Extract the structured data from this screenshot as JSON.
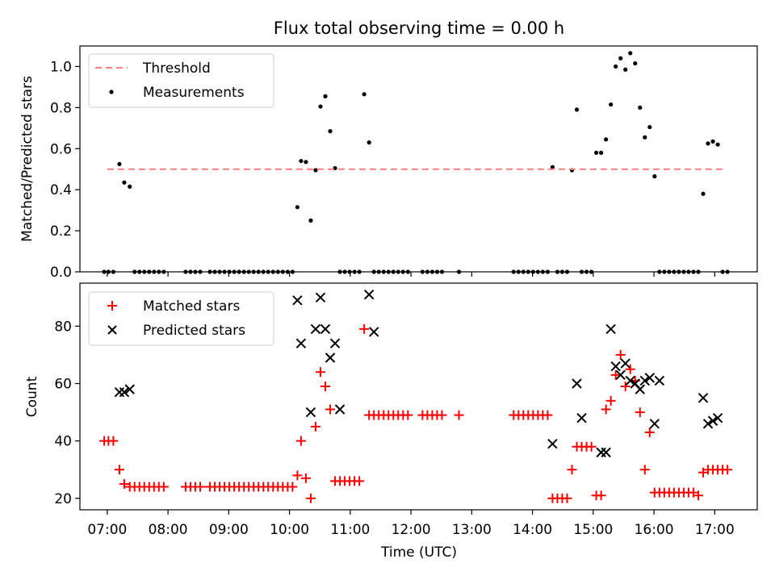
{
  "title": "Flux total observing time = 0.00 h",
  "colors": {
    "threshold": "#ff7f7f",
    "measurements": "#000000",
    "matched": "#ff0000",
    "predicted": "#000000"
  },
  "chart_data": [
    {
      "type": "scatter",
      "ylabel": "Matched/Predicted stars",
      "ylim": [
        0,
        1.1
      ],
      "yticks": [
        0.0,
        0.2,
        0.4,
        0.6,
        0.8,
        1.0
      ],
      "ytick_labels": [
        "0.0",
        "0.2",
        "0.4",
        "0.6",
        "0.8",
        "1.0"
      ],
      "xlim": [
        6.55,
        17.7
      ],
      "legend": {
        "position": "top-left",
        "entries": [
          "Threshold",
          "Measurements"
        ]
      },
      "threshold": {
        "name": "Threshold",
        "y": 0.5,
        "x": [
          7.0,
          17.15
        ],
        "style": "dashed"
      },
      "series": [
        {
          "name": "Measurements",
          "x": [
            6.95,
            7.02,
            7.1,
            7.2,
            7.28,
            7.37,
            7.45,
            7.53,
            7.61,
            7.69,
            7.77,
            7.85,
            7.93,
            8.29,
            8.37,
            8.45,
            8.53,
            8.69,
            8.77,
            8.85,
            8.93,
            9.01,
            9.09,
            9.17,
            9.25,
            9.33,
            9.41,
            9.49,
            9.57,
            9.65,
            9.73,
            9.81,
            9.89,
            9.97,
            10.05,
            10.13,
            10.19,
            10.27,
            10.35,
            10.43,
            10.51,
            10.59,
            10.67,
            10.75,
            10.83,
            10.91,
            10.99,
            11.07,
            11.15,
            11.23,
            11.31,
            11.39,
            11.47,
            11.55,
            11.63,
            11.71,
            11.79,
            11.87,
            11.95,
            12.19,
            12.27,
            12.35,
            12.43,
            12.51,
            12.79,
            13.69,
            13.77,
            13.85,
            13.93,
            14.01,
            14.09,
            14.17,
            14.25,
            14.33,
            14.41,
            14.49,
            14.57,
            14.65,
            14.73,
            14.81,
            14.89,
            14.97,
            15.05,
            15.13,
            15.21,
            15.29,
            15.37,
            15.45,
            15.53,
            15.61,
            15.69,
            15.77,
            15.85,
            15.93,
            16.01,
            16.09,
            16.17,
            16.25,
            16.33,
            16.41,
            16.49,
            16.57,
            16.65,
            16.73,
            16.81,
            16.89,
            16.97,
            17.05,
            17.13,
            17.21
          ],
          "y": [
            0,
            0,
            0,
            0.525,
            0.435,
            0.415,
            0,
            0,
            0,
            0,
            0,
            0,
            0,
            0,
            0,
            0,
            0,
            0,
            0,
            0,
            0,
            0,
            0,
            0,
            0,
            0,
            0,
            0,
            0,
            0,
            0,
            0,
            0,
            0,
            0,
            0.315,
            0.54,
            0.535,
            0.25,
            0.495,
            0.805,
            0.855,
            0.685,
            0.505,
            0,
            0,
            0,
            0,
            0,
            0.865,
            0.63,
            0,
            0,
            0,
            0,
            0,
            0,
            0,
            0,
            0,
            0,
            0,
            0,
            0,
            0,
            0,
            0,
            0,
            0,
            0,
            0,
            0,
            0,
            0.51,
            0,
            0,
            0,
            0.495,
            0.79,
            0,
            0,
            0,
            0.58,
            0.58,
            0.645,
            0.815,
            1.0,
            1.04,
            0.985,
            1.065,
            1.015,
            0.8,
            0.655,
            0.705,
            0.465,
            0,
            0,
            0,
            0,
            0,
            0,
            0,
            0,
            0,
            0.38,
            0.625,
            0.635,
            0.62,
            0,
            0
          ]
        }
      ]
    },
    {
      "type": "scatter",
      "xlabel": "Time (UTC)",
      "ylabel": "Count",
      "ylim": [
        16,
        95
      ],
      "yticks": [
        20,
        40,
        60,
        80
      ],
      "ytick_labels": [
        "20",
        "40",
        "60",
        "80"
      ],
      "xlim": [
        6.55,
        17.7
      ],
      "xticks": [
        7,
        8,
        9,
        10,
        11,
        12,
        13,
        14,
        15,
        16,
        17
      ],
      "xtick_labels": [
        "07:00",
        "08:00",
        "09:00",
        "10:00",
        "11:00",
        "12:00",
        "13:00",
        "14:00",
        "15:00",
        "16:00",
        "17:00"
      ],
      "legend": {
        "position": "top-left",
        "entries": [
          "Matched stars",
          "Predicted stars"
        ]
      },
      "series": [
        {
          "name": "Matched stars",
          "marker": "plus",
          "x": [
            6.95,
            7.02,
            7.1,
            7.2,
            7.28,
            7.37,
            7.45,
            7.53,
            7.61,
            7.69,
            7.77,
            7.85,
            7.93,
            8.29,
            8.37,
            8.45,
            8.53,
            8.69,
            8.77,
            8.85,
            8.93,
            9.01,
            9.09,
            9.17,
            9.25,
            9.33,
            9.41,
            9.49,
            9.57,
            9.65,
            9.73,
            9.81,
            9.89,
            9.97,
            10.05,
            10.13,
            10.19,
            10.27,
            10.35,
            10.43,
            10.51,
            10.59,
            10.67,
            10.75,
            10.83,
            10.91,
            10.99,
            11.07,
            11.15,
            11.23,
            11.31,
            11.39,
            11.47,
            11.55,
            11.63,
            11.71,
            11.79,
            11.87,
            11.95,
            12.19,
            12.27,
            12.35,
            12.43,
            12.51,
            12.79,
            13.69,
            13.77,
            13.85,
            13.93,
            14.01,
            14.09,
            14.17,
            14.25,
            14.33,
            14.41,
            14.49,
            14.57,
            14.65,
            14.73,
            14.81,
            14.89,
            14.97,
            15.05,
            15.13,
            15.21,
            15.29,
            15.37,
            15.45,
            15.53,
            15.61,
            15.69,
            15.77,
            15.85,
            15.93,
            16.01,
            16.09,
            16.17,
            16.25,
            16.33,
            16.41,
            16.49,
            16.57,
            16.65,
            16.73,
            16.81,
            16.89,
            16.97,
            17.05,
            17.13,
            17.21
          ],
          "y": [
            40,
            40,
            40,
            30,
            25,
            24,
            24,
            24,
            24,
            24,
            24,
            24,
            24,
            24,
            24,
            24,
            24,
            24,
            24,
            24,
            24,
            24,
            24,
            24,
            24,
            24,
            24,
            24,
            24,
            24,
            24,
            24,
            24,
            24,
            24,
            28,
            40,
            27,
            20,
            45,
            64,
            59,
            51,
            26,
            26,
            26,
            26,
            26,
            26,
            79,
            49,
            49,
            49,
            49,
            49,
            49,
            49,
            49,
            49,
            49,
            49,
            49,
            49,
            49,
            49,
            49,
            49,
            49,
            49,
            49,
            49,
            49,
            49,
            20,
            20,
            20,
            20,
            30,
            38,
            38,
            38,
            38,
            21,
            21,
            51,
            54,
            63,
            70,
            59,
            65,
            61,
            50,
            30,
            43,
            22,
            22,
            22,
            22,
            22,
            22,
            22,
            22,
            22,
            21,
            29,
            30,
            30,
            30,
            30,
            30
          ]
        },
        {
          "name": "Predicted stars",
          "marker": "x",
          "x": [
            7.2,
            7.28,
            7.37,
            10.13,
            10.19,
            10.35,
            10.43,
            10.51,
            10.59,
            10.67,
            10.75,
            10.83,
            11.31,
            11.39,
            14.33,
            14.73,
            14.81,
            15.13,
            15.21,
            15.29,
            15.37,
            15.45,
            15.53,
            15.61,
            15.69,
            15.77,
            15.85,
            15.93,
            16.01,
            16.09,
            16.81,
            16.89,
            16.97,
            17.05
          ],
          "y": [
            57,
            57,
            58,
            89,
            74,
            50,
            79,
            90,
            79,
            69,
            74,
            51,
            91,
            78,
            39,
            60,
            48,
            36,
            36,
            79,
            66,
            63,
            67,
            61,
            60,
            58,
            61,
            62,
            46,
            61,
            55,
            46,
            47,
            48
          ]
        }
      ]
    }
  ]
}
